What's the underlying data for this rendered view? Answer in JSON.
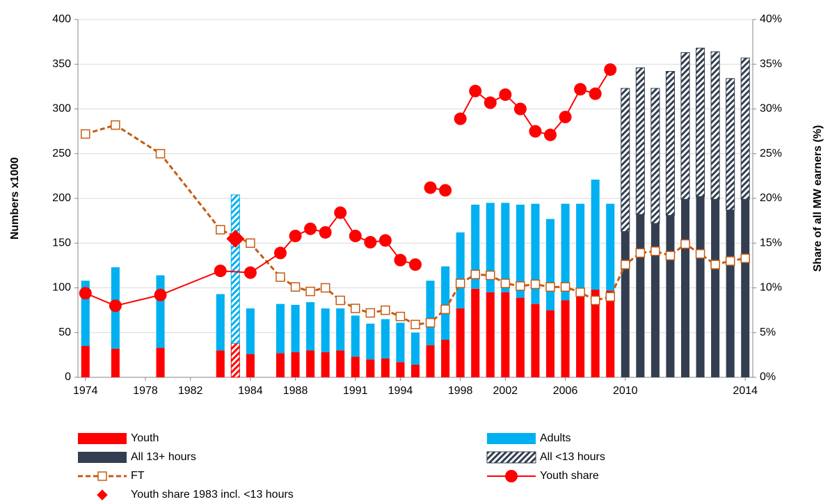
{
  "chart_data": {
    "type": "bar",
    "y_label": "Numbers x1000",
    "y2_label": "Share of all MW earners (%)",
    "ylim": [
      0,
      400
    ],
    "yticks": [
      0,
      50,
      100,
      150,
      200,
      250,
      300,
      350,
      400
    ],
    "y2lim": [
      0,
      40
    ],
    "y2ticks": [
      {
        "value": 0,
        "label": "0%"
      },
      {
        "value": 5,
        "label": "5%"
      },
      {
        "value": 10,
        "label": "10%"
      },
      {
        "value": 15,
        "label": "15%"
      },
      {
        "value": 20,
        "label": "20%"
      },
      {
        "value": 25,
        "label": "25%"
      },
      {
        "value": 30,
        "label": "30%"
      },
      {
        "value": 35,
        "label": "35%"
      },
      {
        "value": 40,
        "label": "40%"
      }
    ],
    "grid": true,
    "categories": [
      "1974",
      null,
      null,
      null,
      "1978",
      null,
      null,
      "1982",
      null,
      null,
      null,
      "1984",
      null,
      null,
      "1988",
      null,
      null,
      null,
      "1991",
      null,
      null,
      "1994",
      null,
      null,
      null,
      "1998",
      null,
      null,
      "2002",
      null,
      null,
      null,
      "2006",
      null,
      null,
      null,
      "2010",
      null,
      null,
      null,
      null,
      null,
      null,
      null,
      "2014"
    ],
    "series": [
      {
        "name": "Youth",
        "type": "bar",
        "color": "#ff0000",
        "values": [
          35,
          null,
          32,
          null,
          null,
          33,
          null,
          null,
          null,
          30,
          null,
          26,
          null,
          27,
          28,
          30,
          28,
          30,
          23,
          20,
          21,
          17,
          14,
          36,
          42,
          77,
          99,
          95,
          95,
          89,
          82,
          75,
          86,
          91,
          98,
          97,
          null,
          null,
          null,
          null,
          null,
          null,
          null,
          null,
          null
        ]
      },
      {
        "name": "Adults",
        "type": "bar",
        "color": "#00b0f0",
        "values": [
          73,
          null,
          91,
          null,
          null,
          81,
          null,
          null,
          null,
          63,
          null,
          51,
          null,
          55,
          53,
          54,
          49,
          47,
          46,
          40,
          44,
          44,
          36,
          72,
          82,
          85,
          94,
          100,
          100,
          104,
          112,
          102,
          108,
          103,
          123,
          97,
          null,
          null,
          null,
          null,
          null,
          null,
          null,
          null,
          null
        ]
      },
      {
        "name": "All 13+ hours",
        "type": "bar",
        "color": "#333f50",
        "values": [
          null,
          null,
          null,
          null,
          null,
          null,
          null,
          null,
          null,
          null,
          null,
          null,
          null,
          null,
          null,
          null,
          null,
          null,
          null,
          null,
          null,
          null,
          null,
          null,
          null,
          null,
          null,
          null,
          null,
          null,
          null,
          null,
          null,
          null,
          null,
          null,
          163,
          182,
          172,
          181,
          199,
          202,
          199,
          187,
          199
        ]
      },
      {
        "name": "All <13 hours",
        "type": "bar",
        "color": "#333f50",
        "pattern": "hatch",
        "values": [
          null,
          null,
          null,
          null,
          null,
          null,
          null,
          null,
          null,
          null,
          null,
          null,
          null,
          null,
          null,
          null,
          null,
          null,
          null,
          null,
          null,
          null,
          null,
          null,
          null,
          null,
          null,
          null,
          null,
          null,
          null,
          null,
          null,
          null,
          null,
          null,
          160,
          164,
          151,
          161,
          164,
          166,
          165,
          147,
          158
        ]
      },
      {
        "type": "bar",
        "color": "#ff0000",
        "pattern": "hatch",
        "values": [
          null,
          null,
          null,
          null,
          null,
          null,
          null,
          null,
          null,
          null,
          38,
          null,
          null,
          null,
          null,
          null,
          null,
          null,
          null,
          null,
          null,
          null,
          null,
          null,
          null,
          null,
          null,
          null,
          null,
          null,
          null,
          null,
          null,
          null,
          null,
          null,
          null,
          null,
          null,
          null,
          null,
          null,
          null,
          null,
          null
        ]
      },
      {
        "type": "bar",
        "color": "#00b0f0",
        "pattern": "hatch",
        "values": [
          null,
          null,
          null,
          null,
          null,
          null,
          null,
          null,
          null,
          null,
          166,
          null,
          null,
          null,
          null,
          null,
          null,
          null,
          null,
          null,
          null,
          null,
          null,
          null,
          null,
          null,
          null,
          null,
          null,
          null,
          null,
          null,
          null,
          null,
          null,
          null,
          null,
          null,
          null,
          null,
          null,
          null,
          null,
          null,
          null
        ]
      },
      {
        "name": "FT",
        "type": "line",
        "axis": "y2",
        "color": "#c55a11",
        "dash": true,
        "marker": "square",
        "connect_gaps": true,
        "values": [
          27.2,
          null,
          28.2,
          null,
          null,
          25.0,
          null,
          null,
          null,
          16.5,
          null,
          15.0,
          null,
          11.2,
          10.1,
          9.6,
          10.0,
          8.6,
          7.7,
          7.2,
          7.5,
          6.8,
          5.9,
          6.1,
          7.6,
          10.5,
          11.5,
          11.4,
          10.5,
          10.2,
          10.4,
          10.1,
          10.1,
          9.5,
          8.6,
          9.0,
          12.6,
          13.9,
          14.1,
          13.6,
          14.9,
          13.8,
          12.6,
          13.0,
          13.3
        ]
      },
      {
        "name": "Youth share",
        "type": "line",
        "axis": "y2",
        "color": "#ff0000",
        "marker": "circle",
        "connect_gaps": true,
        "values": [
          9.4,
          null,
          8.0,
          null,
          null,
          9.2,
          null,
          null,
          null,
          11.9,
          null,
          11.7,
          null,
          13.9,
          15.8,
          16.6,
          16.2,
          18.4,
          15.8,
          15.1,
          15.3,
          13.1,
          12.6,
          null,
          null,
          null,
          null,
          null,
          null,
          null,
          null,
          null,
          null,
          null,
          null,
          null,
          null,
          null,
          null,
          null,
          null,
          null,
          null,
          null,
          null
        ]
      },
      {
        "type": "line",
        "axis": "y2",
        "color": "#ff0000",
        "marker": "circle",
        "values": [
          null,
          null,
          null,
          null,
          null,
          null,
          null,
          null,
          null,
          null,
          null,
          null,
          null,
          null,
          null,
          null,
          null,
          null,
          null,
          null,
          null,
          null,
          null,
          21.2,
          20.9,
          null,
          null,
          null,
          null,
          null,
          null,
          null,
          null,
          null,
          null,
          null,
          null,
          null,
          null,
          null,
          null,
          null,
          null,
          null,
          null
        ]
      },
      {
        "type": "line",
        "axis": "y2",
        "color": "#ff0000",
        "marker": "circle",
        "values": [
          null,
          null,
          null,
          null,
          null,
          null,
          null,
          null,
          null,
          null,
          null,
          null,
          null,
          null,
          null,
          null,
          null,
          null,
          null,
          null,
          null,
          null,
          null,
          null,
          null,
          28.9,
          32.0,
          30.7,
          31.6,
          30.0,
          27.5,
          27.1,
          29.1,
          32.2,
          31.7,
          34.4,
          null,
          null,
          null,
          null,
          null,
          null,
          null,
          null,
          null
        ]
      },
      {
        "name": "Youth share 1983 incl. <13 hours",
        "type": "line",
        "axis": "y2",
        "color": "#ff0000",
        "marker": "diamond",
        "values": [
          null,
          null,
          null,
          null,
          null,
          null,
          null,
          null,
          null,
          null,
          15.5,
          null,
          null,
          null,
          null,
          null,
          null,
          null,
          null,
          null,
          null,
          null,
          null,
          null,
          null,
          null,
          null,
          null,
          null,
          null,
          null,
          null,
          null,
          null,
          null,
          null,
          null,
          null,
          null,
          null,
          null,
          null,
          null,
          null,
          null
        ]
      }
    ]
  }
}
